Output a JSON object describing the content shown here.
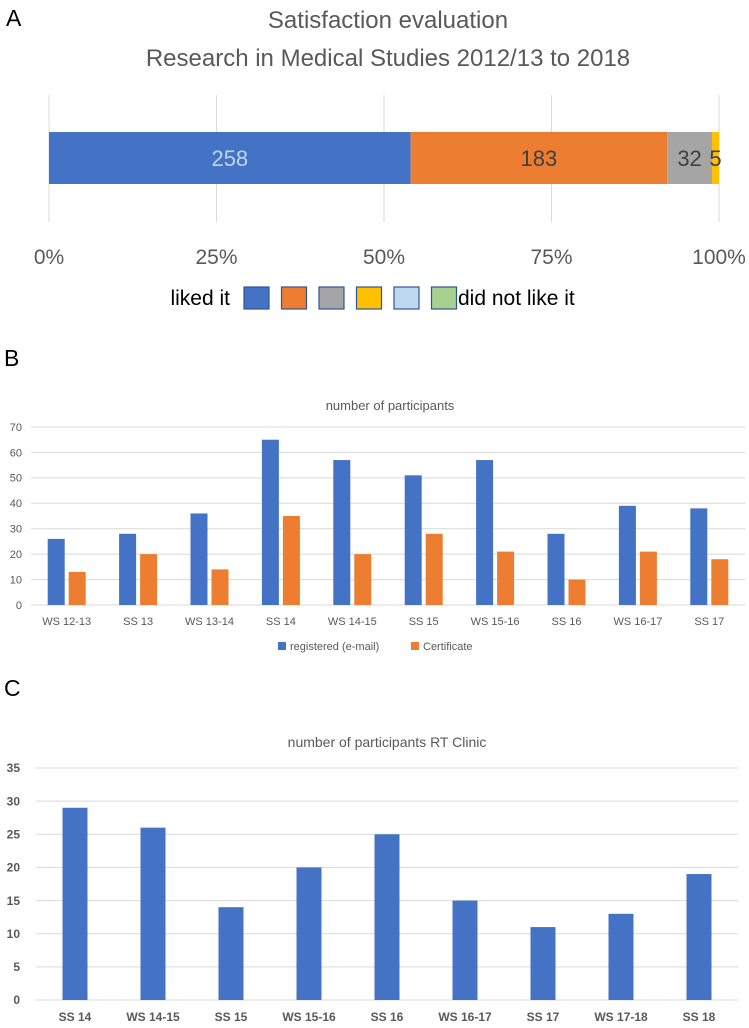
{
  "panels": [
    {
      "letter": "A"
    },
    {
      "letter": "B"
    },
    {
      "letter": "C"
    }
  ],
  "colors": {
    "blue": "#4472C4",
    "orange": "#ED7D31",
    "gray": "#A5A5A5",
    "yellow": "#FFC000",
    "lightblue": "#BDD7EE",
    "green": "#A9D18E",
    "axis_text": "#595959",
    "grid": "#D9D9D9"
  },
  "chart_data": [
    {
      "type": "bar",
      "orientation": "horizontal-stacked-100",
      "title_lines": [
        "Satisfaction evaluation",
        "Research in Medical Studies 2012/13 to 2018"
      ],
      "series": [
        {
          "value": 258,
          "label": "258",
          "color": "#4472C4",
          "label_color": "#BDD7EE"
        },
        {
          "value": 183,
          "label": "183",
          "color": "#ED7D31",
          "label_color": "#404040"
        },
        {
          "value": 32,
          "label": "32",
          "color": "#A5A5A5",
          "label_color": "#404040"
        },
        {
          "value": 5,
          "label": "5",
          "color": "#FFC000",
          "label_color": "#404040"
        },
        {
          "value": 0,
          "label": "",
          "color": "#BDD7EE"
        },
        {
          "value": 0,
          "label": "",
          "color": "#A9D18E"
        }
      ],
      "xticks": [
        "0%",
        "25%",
        "50%",
        "75%",
        "100%"
      ],
      "xlim": [
        0,
        100
      ],
      "grid": true,
      "legend": {
        "left_text": "liked it",
        "right_text": "did not like it",
        "position": "bottom",
        "swatch_colors": [
          "#4472C4",
          "#ED7D31",
          "#A5A5A5",
          "#FFC000",
          "#BDD7EE",
          "#A9D18E"
        ]
      }
    },
    {
      "type": "bar",
      "title": "number of participants",
      "categories": [
        "WS 12-13",
        "SS 13",
        "WS 13-14",
        "SS 14",
        "WS 14-15",
        "SS 15",
        "WS 15-16",
        "SS 16",
        "WS 16-17",
        "SS 17"
      ],
      "series": [
        {
          "name": "registered (e-mail)",
          "values": [
            26,
            28,
            36,
            65,
            57,
            51,
            57,
            28,
            39,
            38
          ],
          "color": "#4472C4"
        },
        {
          "name": "Certificate",
          "values": [
            13,
            20,
            14,
            35,
            20,
            28,
            21,
            10,
            21,
            18
          ],
          "color": "#ED7D31"
        }
      ],
      "ylim": [
        0,
        70
      ],
      "yticks": [
        0,
        10,
        20,
        30,
        40,
        50,
        60,
        70
      ],
      "grid": true,
      "legend_position": "bottom"
    },
    {
      "type": "bar",
      "title": "number of participants RT Clinic",
      "categories": [
        "SS 14",
        "WS 14-15",
        "SS 15",
        "WS 15-16",
        "SS 16",
        "WS 16-17",
        "SS 17",
        "WS 17-18",
        "SS 18"
      ],
      "series": [
        {
          "values": [
            29,
            26,
            14,
            20,
            25,
            15,
            11,
            13,
            19
          ],
          "color": "#4472C4"
        }
      ],
      "ylim": [
        0,
        35
      ],
      "yticks": [
        0,
        5,
        10,
        15,
        20,
        25,
        30,
        35
      ],
      "grid": true
    }
  ]
}
